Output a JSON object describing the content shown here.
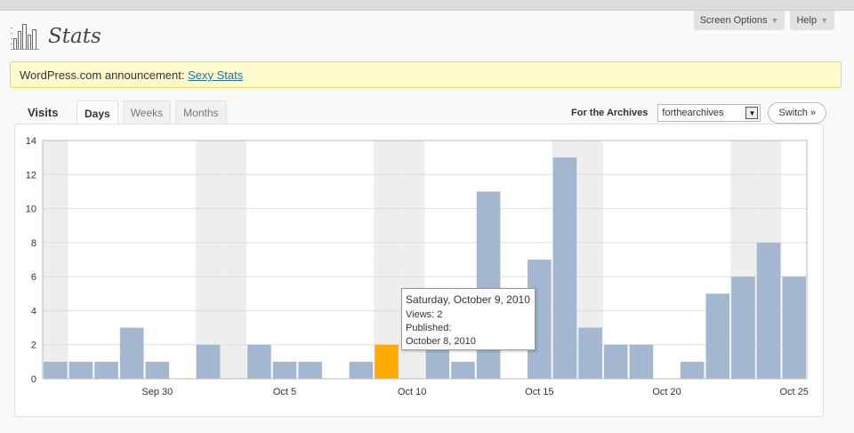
{
  "screen_options": {
    "label": "Screen Options"
  },
  "help": {
    "label": "Help"
  },
  "page": {
    "title": "Stats"
  },
  "notice": {
    "prefix": "WordPress.com announcement: ",
    "link_text": "Sexy Stats"
  },
  "visits_label": "Visits",
  "tabs": [
    {
      "label": "Days",
      "active": true
    },
    {
      "label": "Weeks",
      "active": false
    },
    {
      "label": "Months",
      "active": false
    }
  ],
  "blog_selector": {
    "label": "For the Archives",
    "selected": "forthearchives",
    "switch_label": "Switch »"
  },
  "chart_data": {
    "type": "bar",
    "title": "",
    "xlabel": "",
    "ylabel": "",
    "ylim": [
      0,
      14
    ],
    "y_ticks": [
      0,
      2,
      4,
      6,
      8,
      10,
      12,
      14
    ],
    "grid": true,
    "legend": "none",
    "colors": {
      "bar": "#a3b8d0",
      "highlight": "#ffaa00",
      "weekend_band": "#eeeeee"
    },
    "x_tick_labels": [
      {
        "day": "Sep 30",
        "index": 4
      },
      {
        "day": "Oct 5",
        "index": 9
      },
      {
        "day": "Oct 10",
        "index": 14
      },
      {
        "day": "Oct 15",
        "index": 19
      },
      {
        "day": "Oct 20",
        "index": 24
      },
      {
        "day": "Oct 25",
        "index": 29
      }
    ],
    "categories": [
      "Sep 26",
      "Sep 27",
      "Sep 28",
      "Sep 29",
      "Sep 30",
      "Oct 1",
      "Oct 2",
      "Oct 3",
      "Oct 4",
      "Oct 5",
      "Oct 6",
      "Oct 7",
      "Oct 8",
      "Oct 9",
      "Oct 10",
      "Oct 11",
      "Oct 12",
      "Oct 13",
      "Oct 14",
      "Oct 15",
      "Oct 16",
      "Oct 17",
      "Oct 18",
      "Oct 19",
      "Oct 20",
      "Oct 21",
      "Oct 22",
      "Oct 23",
      "Oct 24",
      "Oct 25"
    ],
    "values": [
      1,
      1,
      1,
      3,
      1,
      0,
      2,
      0,
      2,
      1,
      1,
      0,
      1,
      2,
      0,
      2,
      1,
      11,
      0,
      7,
      13,
      3,
      2,
      2,
      0,
      1,
      5,
      6,
      8,
      6
    ],
    "weekend_indices": [
      0,
      6,
      7,
      13,
      14,
      20,
      21,
      27,
      28
    ],
    "highlight_index": 13
  },
  "tooltip": {
    "date": "Saturday, October 9, 2010",
    "views": "Views: 2",
    "published_label": "Published:",
    "published_date": "October 8, 2010"
  }
}
